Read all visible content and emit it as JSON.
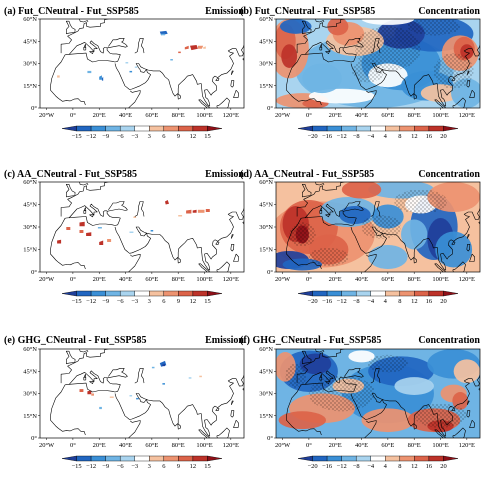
{
  "panels": [
    {
      "title": "(a) Fut_CNeutral - Fut_SSP585",
      "right_label": "Emission",
      "kind": "emission",
      "variant": "a"
    },
    {
      "title": "(b) Fut_CNeutral - Fut_SSP585",
      "right_label": "Concentration",
      "kind": "concentration",
      "variant": "b"
    },
    {
      "title": "(c) AA_CNeutral - Fut_SSP585",
      "right_label": "Emission",
      "kind": "emission",
      "variant": "c"
    },
    {
      "title": "(d) AA_CNeutral - Fut_SSP585",
      "right_label": "Concentration",
      "kind": "concentration",
      "variant": "d"
    },
    {
      "title": "(e) GHG_CNeutral - Fut_SSP585",
      "right_label": "Emission",
      "kind": "emission",
      "variant": "e"
    },
    {
      "title": "(f) GHG_CNeutral - Fut_SSP585",
      "right_label": "Concentration",
      "kind": "concentration",
      "variant": "f"
    }
  ],
  "lat_ticks": [
    "60°N",
    "45°N",
    "30°N",
    "15°N",
    "0°"
  ],
  "lon_ticks": [
    "20°W",
    "0°",
    "20°E",
    "40°E",
    "60°E",
    "80°E",
    "100°E",
    "120°E"
  ],
  "colorbars": {
    "emission": {
      "labels": [
        "−15",
        "−12",
        "−9",
        "−6",
        "−3",
        "3",
        "6",
        "9",
        "12",
        "15"
      ],
      "colors": [
        "#1f3f9a",
        "#2166c1",
        "#3a8fd6",
        "#6fb4e4",
        "#a9d4ef",
        "#ffffff",
        "#f5c19f",
        "#ed9370",
        "#dc6349",
        "#bd3229",
        "#8f1018"
      ]
    },
    "concentration": {
      "labels": [
        "−20",
        "−16",
        "−12",
        "−8",
        "−4",
        "4",
        "8",
        "12",
        "16",
        "20"
      ],
      "colors": [
        "#1f3f9a",
        "#2166c1",
        "#3a8fd6",
        "#6fb4e4",
        "#a9d4ef",
        "#ffffff",
        "#f5c19f",
        "#ed9370",
        "#dc6349",
        "#bd3229",
        "#8f1018"
      ]
    }
  }
}
